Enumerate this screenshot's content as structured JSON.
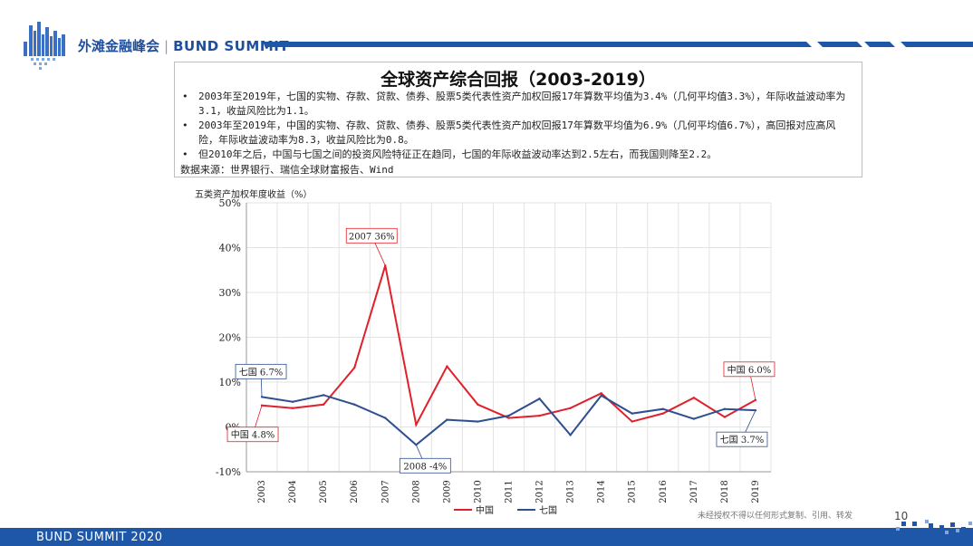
{
  "header": {
    "brand_cn": "外滩金融峰会",
    "brand_sep": "|",
    "brand_en": "BUND SUMMIT",
    "bar_color": "#1f57a8"
  },
  "textbox": {
    "title": "全球资产综合回报（2003-2019）",
    "bullets": [
      "2003年至2019年，七国的实物、存款、贷款、债券、股票5类代表性资产加权回报17年算数平均值为3.4%（几何平均值3.3%），年际收益波动率为3.1，收益风险比为1.1。",
      "2003年至2019年，中国的实物、存款、贷款、债券、股票5类代表性资产加权回报17年算数平均值为6.9%（几何平均值6.7%），高回报对应高风险，年际收益波动率为8.3，收益风险比为0.8。",
      "但2010年之后，中国与七国之间的投资风险特征正在趋同，七国的年际收益波动率达到2.5左右，而我国则降至2.2。"
    ],
    "source": "数据来源：世界银行、瑞信全球财富报告、Wind"
  },
  "chart_data": {
    "type": "line",
    "title": "五类资产加权年度收益（%）",
    "x": [
      "2003",
      "2004",
      "2005",
      "2006",
      "2007",
      "2008",
      "2009",
      "2010",
      "2011",
      "2012",
      "2013",
      "2014",
      "2015",
      "2016",
      "2017",
      "2018",
      "2019"
    ],
    "ylim": [
      -10,
      50
    ],
    "yticks": [
      -10,
      0,
      10,
      20,
      30,
      40,
      50
    ],
    "ytick_labels": [
      "-10%",
      "0%",
      "10%",
      "20%",
      "30%",
      "40%",
      "50%"
    ],
    "grid": true,
    "legend_position": "bottom",
    "series": [
      {
        "name": "中国",
        "color": "#e0202a",
        "values": [
          4.8,
          4.2,
          5.0,
          13.2,
          36.0,
          0.5,
          13.5,
          5.0,
          2.0,
          2.5,
          4.2,
          7.5,
          1.2,
          3.0,
          6.5,
          2.2,
          6.0
        ]
      },
      {
        "name": "七国",
        "color": "#2f4f8f",
        "values": [
          6.7,
          5.6,
          7.1,
          5.0,
          2.0,
          -4.0,
          1.6,
          1.2,
          2.5,
          6.3,
          -1.8,
          7.0,
          3.0,
          4.0,
          1.8,
          4.0,
          3.7
        ]
      }
    ],
    "annotations": [
      {
        "text": "2007 36%",
        "series": 0,
        "index": 4
      },
      {
        "text": "中国 6.0%",
        "series": 0,
        "index": 16
      },
      {
        "text": "七国 6.7%",
        "series": 1,
        "index": 0
      },
      {
        "text": "中国 4.8%",
        "series": 0,
        "index": 0
      },
      {
        "text": "2008 -4%",
        "series": 1,
        "index": 5
      },
      {
        "text": "七国 3.7%",
        "series": 1,
        "index": 16
      }
    ]
  },
  "footer": {
    "event": "BUND SUMMIT 2020",
    "disclaimer": "未经授权不得以任何形式复制、引用、转发",
    "page_number": "10"
  }
}
